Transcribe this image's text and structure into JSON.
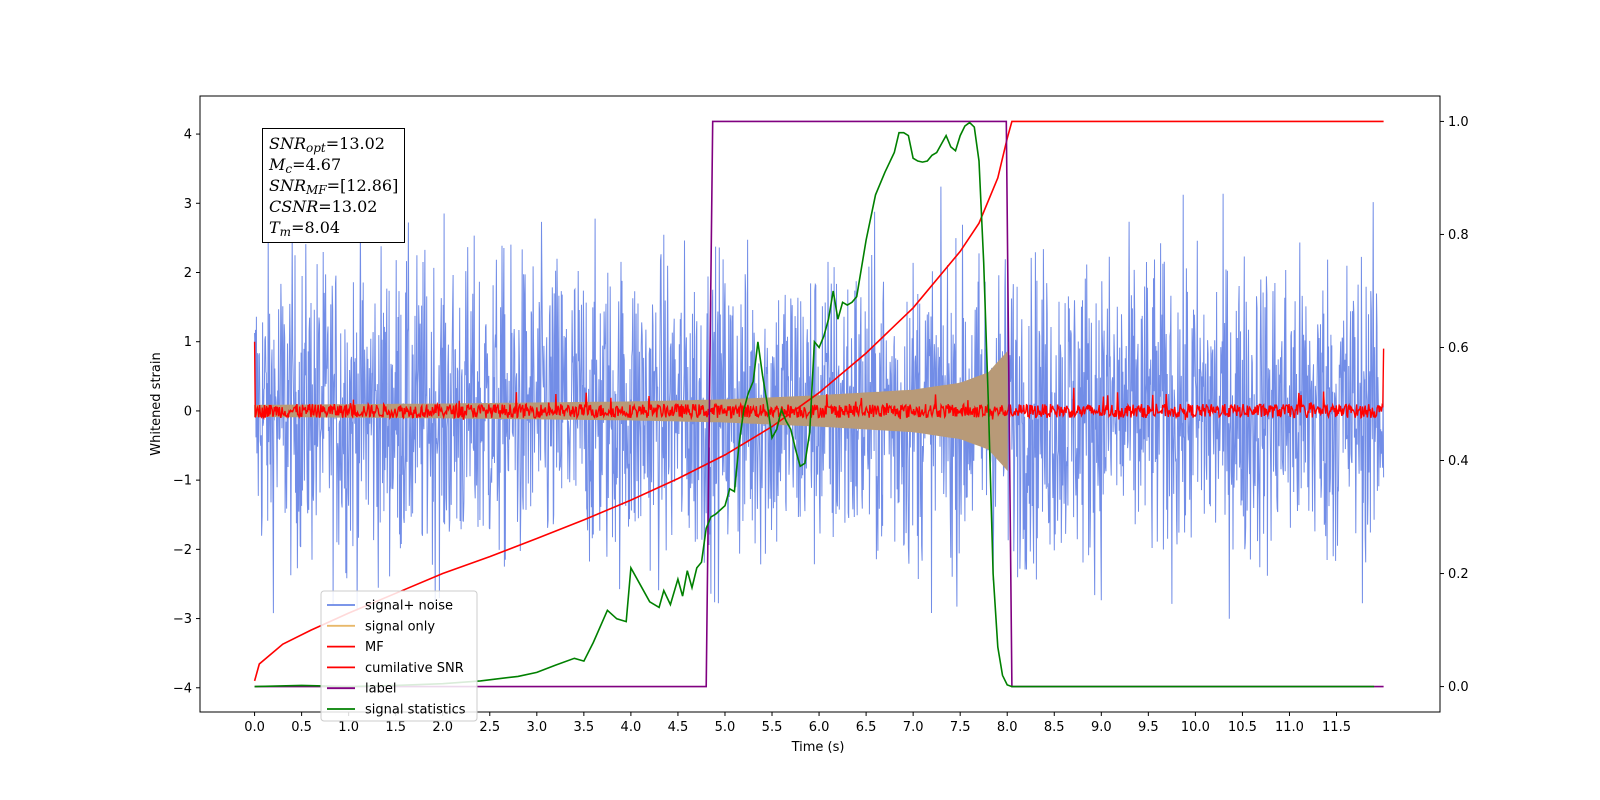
{
  "chart_data": {
    "type": "line",
    "xlabel": "Time (s)",
    "ylabel": "Whitened strain",
    "x_ticks": [
      "0.0",
      "0.5",
      "1.0",
      "1.5",
      "2.0",
      "2.5",
      "3.0",
      "3.5",
      "4.0",
      "4.5",
      "5.0",
      "5.5",
      "6.0",
      "6.5",
      "7.0",
      "7.5",
      "8.0",
      "8.5",
      "9.0",
      "9.5",
      "10.0",
      "10.5",
      "11.0",
      "11.5"
    ],
    "y_ticks": [
      "−4",
      "−3",
      "−2",
      "−1",
      "0",
      "1",
      "2",
      "3",
      "4"
    ],
    "y2_ticks": [
      "0.0",
      "0.2",
      "0.4",
      "0.6",
      "0.8",
      "1.0"
    ],
    "xlim": [
      -0.58,
      12.6
    ],
    "ylim": [
      -4.35,
      4.55
    ],
    "y2lim": [
      -0.045,
      1.045
    ],
    "legend_position": "lower-left",
    "legend": [
      "signal+ noise",
      "signal only",
      "MF",
      "cumilative SNR",
      "label",
      "signal statistics"
    ],
    "colors": {
      "signal_noise": "#6a87e6",
      "signal_only": "#e8b86a",
      "signal_overlap": "#b89a78",
      "mf": "#ff0000",
      "cumulative_snr": "#ff0000",
      "label": "#800080",
      "signal_statistics": "#008000"
    },
    "signal_noise_envelope": {
      "x_range": [
        0.0,
        12.0
      ],
      "typical_amplitude": 1.8,
      "peak_amplitude": 4.1
    },
    "signal_only_envelope": {
      "x": [
        0.0,
        2.0,
        4.0,
        5.0,
        6.0,
        7.0,
        7.5,
        7.8,
        8.0
      ],
      "amplitude": [
        0.08,
        0.1,
        0.13,
        0.16,
        0.22,
        0.3,
        0.4,
        0.55,
        0.85
      ]
    },
    "mf_noise": {
      "x_range": [
        0.0,
        12.0
      ],
      "amplitude": 0.1,
      "start_value": 1.0,
      "end_value": 0.9
    },
    "series": [
      {
        "name": "cumilative SNR",
        "axis": "right",
        "x": [
          0.0,
          0.05,
          0.3,
          0.6,
          1.0,
          1.5,
          2.0,
          2.5,
          3.0,
          3.5,
          4.0,
          4.5,
          5.0,
          5.5,
          6.0,
          6.5,
          7.0,
          7.5,
          7.7,
          7.9,
          8.0,
          8.05,
          12.0
        ],
        "y": [
          0.01,
          0.04,
          0.075,
          0.1,
          0.13,
          0.165,
          0.2,
          0.23,
          0.262,
          0.295,
          0.33,
          0.368,
          0.41,
          0.46,
          0.52,
          0.59,
          0.67,
          0.77,
          0.82,
          0.9,
          0.97,
          1.0,
          1.0
        ]
      },
      {
        "name": "label",
        "axis": "right",
        "x": [
          0.0,
          4.8,
          4.87,
          7.99,
          8.05,
          12.0
        ],
        "y": [
          0.0,
          0.0,
          1.0,
          1.0,
          0.0,
          0.0
        ]
      },
      {
        "name": "signal statistics",
        "axis": "right",
        "x": [
          0.0,
          0.5,
          1.0,
          1.5,
          2.0,
          2.4,
          2.8,
          3.0,
          3.2,
          3.4,
          3.5,
          3.6,
          3.75,
          3.85,
          3.95,
          4.0,
          4.1,
          4.2,
          4.3,
          4.35,
          4.42,
          4.5,
          4.55,
          4.6,
          4.65,
          4.7,
          4.75,
          4.8,
          4.85,
          4.9,
          5.0,
          5.05,
          5.1,
          5.15,
          5.2,
          5.25,
          5.3,
          5.35,
          5.4,
          5.45,
          5.5,
          5.55,
          5.6,
          5.65,
          5.7,
          5.75,
          5.8,
          5.85,
          5.9,
          5.95,
          6.0,
          6.05,
          6.1,
          6.15,
          6.2,
          6.25,
          6.3,
          6.35,
          6.4,
          6.45,
          6.5,
          6.6,
          6.7,
          6.8,
          6.85,
          6.9,
          6.95,
          7.0,
          7.05,
          7.1,
          7.15,
          7.2,
          7.25,
          7.3,
          7.35,
          7.4,
          7.45,
          7.5,
          7.55,
          7.6,
          7.65,
          7.7,
          7.75,
          7.8,
          7.85,
          7.9,
          7.95,
          8.0,
          8.05,
          8.1,
          8.5,
          9.0,
          10.0,
          11.0,
          11.9
        ],
        "y": [
          0.0,
          0.002,
          0.0,
          0.002,
          0.005,
          0.01,
          0.018,
          0.025,
          0.038,
          0.05,
          0.045,
          0.078,
          0.135,
          0.12,
          0.115,
          0.21,
          0.18,
          0.15,
          0.14,
          0.17,
          0.145,
          0.19,
          0.16,
          0.205,
          0.175,
          0.21,
          0.22,
          0.28,
          0.3,
          0.305,
          0.32,
          0.35,
          0.345,
          0.43,
          0.49,
          0.52,
          0.54,
          0.61,
          0.55,
          0.5,
          0.44,
          0.455,
          0.49,
          0.47,
          0.455,
          0.42,
          0.39,
          0.395,
          0.45,
          0.61,
          0.6,
          0.62,
          0.65,
          0.7,
          0.65,
          0.68,
          0.675,
          0.68,
          0.69,
          0.74,
          0.79,
          0.87,
          0.91,
          0.945,
          0.98,
          0.98,
          0.975,
          0.935,
          0.93,
          0.928,
          0.93,
          0.94,
          0.945,
          0.96,
          0.975,
          0.955,
          0.948,
          0.975,
          0.992,
          0.998,
          0.99,
          0.93,
          0.75,
          0.5,
          0.2,
          0.07,
          0.02,
          0.003,
          0.0,
          0.0,
          0.0,
          0.0,
          0.0,
          0.0,
          0.0
        ]
      }
    ]
  },
  "stats_box": [
    {
      "sym": "SNR",
      "sub": "opt",
      "val": "=13.02"
    },
    {
      "sym": "M",
      "sub": "c",
      "val": "=4.67"
    },
    {
      "sym": "SNR",
      "sub": "MF",
      "val": "=[12.86]"
    },
    {
      "sym": "CSNR",
      "sub": "",
      "val": "=13.02"
    },
    {
      "sym": "T",
      "sub": "m",
      "val": "=8.04"
    }
  ]
}
